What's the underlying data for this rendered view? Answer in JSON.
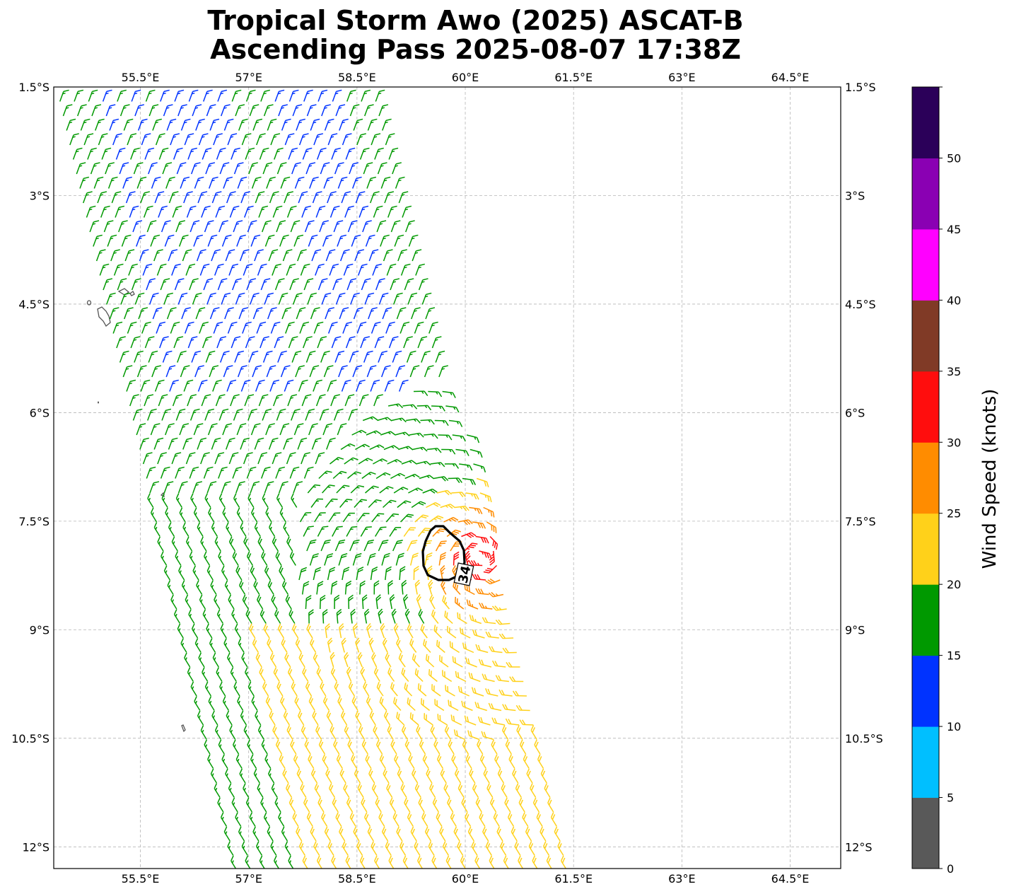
{
  "title_line1": "Tropical Storm Awo (2025) ASCAT-B",
  "title_line2": "Ascending Pass 2025-08-07 17:38Z",
  "map": {
    "lon_range": [
      54.3,
      65.2
    ],
    "lat_range": [
      -1.5,
      -12.3
    ],
    "lon_ticks": [
      "55.5°E",
      "57°E",
      "58.5°E",
      "60°E",
      "61.5°E",
      "63°E",
      "64.5°E"
    ],
    "lon_tick_values": [
      55.5,
      57,
      58.5,
      60,
      61.5,
      63,
      64.5
    ],
    "lat_ticks": [
      "1.5°S",
      "3°S",
      "4.5°S",
      "6°S",
      "7.5°S",
      "9°S",
      "10.5°S",
      "12°S"
    ],
    "lat_tick_values": [
      -1.5,
      -3,
      -4.5,
      -6,
      -7.5,
      -9,
      -10.5,
      -12
    ],
    "gridlines": true,
    "contour_label": "34",
    "storm_center": {
      "lon": 60.2,
      "lat": -8.0
    }
  },
  "colorbar": {
    "label": "Wind Speed (knots)",
    "ticks": [
      "0",
      "5",
      "10",
      "15",
      "20",
      "25",
      "30",
      "35",
      "40",
      "45",
      "50"
    ],
    "colors": [
      "#595959",
      "#00bfff",
      "#0033ff",
      "#009900",
      "#ffd11a",
      "#ff8c00",
      "#ff0d0d",
      "#803a26",
      "#ff00ff",
      "#8a00b3",
      "#2b0059"
    ]
  }
}
